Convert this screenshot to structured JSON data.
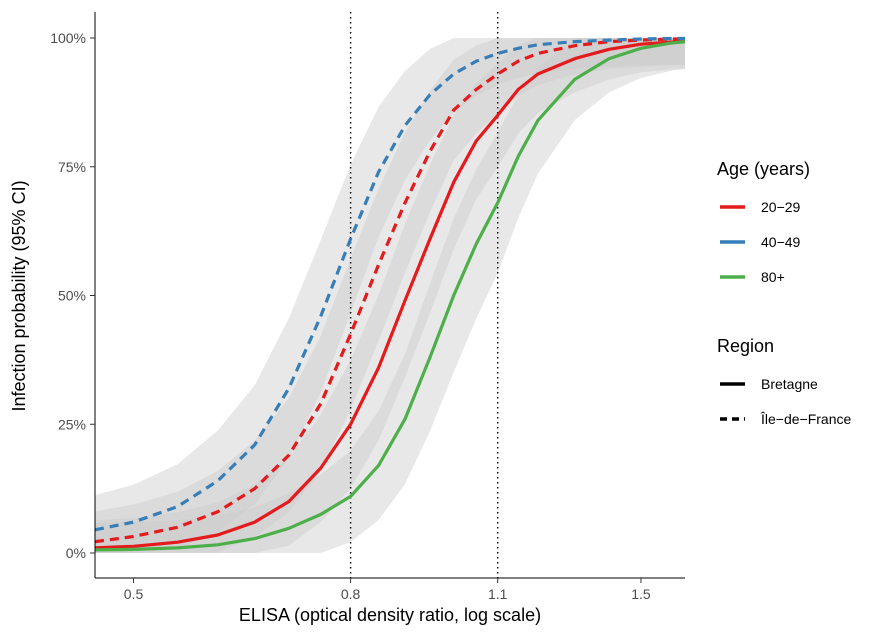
{
  "chart_data": {
    "type": "line",
    "xlabel": "ELISA (optical density ratio, log scale)",
    "ylabel": "Infection probability (95% CI)",
    "x_scale": "log",
    "xlim": [
      0.46,
      1.65
    ],
    "ylim": [
      0,
      1
    ],
    "x_ticks": [
      0.5,
      0.8,
      1.1,
      1.5
    ],
    "x_tick_labels": [
      "0.5",
      "0.8",
      "1.1",
      "1.5"
    ],
    "y_ticks": [
      0,
      0.25,
      0.5,
      0.75,
      1
    ],
    "y_tick_labels": [
      "0%",
      "25%",
      "50%",
      "75%",
      "100%"
    ],
    "reference_lines_x": [
      0.8,
      1.1
    ],
    "confidence_band": true,
    "grid": false,
    "legend_placement": "right",
    "legends": [
      {
        "title": "Age (years)",
        "items": [
          {
            "label": "20−29",
            "color": "#E41A1C"
          },
          {
            "label": "40−49",
            "color": "#377EB8"
          },
          {
            "label": "80+",
            "color": "#4DAF4A"
          }
        ]
      },
      {
        "title": "Region",
        "items": [
          {
            "label": "Bretagne",
            "linetype": "solid"
          },
          {
            "label": "Île−de−France",
            "linetype": "dashed"
          }
        ]
      }
    ],
    "series": [
      {
        "age": "20−29",
        "region": "Bretagne",
        "color": "#E41A1C",
        "dash": false,
        "x": [
          0.46,
          0.5,
          0.55,
          0.6,
          0.65,
          0.7,
          0.75,
          0.8,
          0.85,
          0.9,
          0.95,
          1.0,
          1.05,
          1.1,
          1.15,
          1.2,
          1.3,
          1.4,
          1.5,
          1.6,
          1.65
        ],
        "y": [
          0.01,
          0.013,
          0.021,
          0.035,
          0.06,
          0.1,
          0.165,
          0.25,
          0.36,
          0.49,
          0.61,
          0.72,
          0.8,
          0.85,
          0.9,
          0.93,
          0.96,
          0.978,
          0.988,
          0.992,
          0.993
        ]
      },
      {
        "age": "20−29",
        "region": "Île−de−France",
        "color": "#E41A1C",
        "dash": true,
        "x": [
          0.46,
          0.5,
          0.55,
          0.6,
          0.65,
          0.7,
          0.75,
          0.8,
          0.85,
          0.9,
          0.95,
          1.0,
          1.05,
          1.1,
          1.15,
          1.2,
          1.3,
          1.4,
          1.5,
          1.6,
          1.65
        ],
        "y": [
          0.022,
          0.032,
          0.05,
          0.08,
          0.125,
          0.19,
          0.29,
          0.425,
          0.56,
          0.68,
          0.78,
          0.86,
          0.9,
          0.93,
          0.955,
          0.97,
          0.985,
          0.993,
          0.996,
          0.998,
          0.998
        ]
      },
      {
        "age": "40−49",
        "region": "Île−de−France",
        "color": "#377EB8",
        "dash": true,
        "x": [
          0.46,
          0.5,
          0.55,
          0.6,
          0.65,
          0.7,
          0.75,
          0.8,
          0.85,
          0.9,
          0.95,
          1.0,
          1.05,
          1.1,
          1.15,
          1.2,
          1.3,
          1.4,
          1.5,
          1.6,
          1.65
        ],
        "y": [
          0.045,
          0.06,
          0.09,
          0.14,
          0.21,
          0.32,
          0.46,
          0.61,
          0.74,
          0.83,
          0.89,
          0.93,
          0.955,
          0.97,
          0.98,
          0.987,
          0.993,
          0.996,
          0.998,
          0.999,
          0.999
        ]
      },
      {
        "age": "80+",
        "region": "Bretagne",
        "color": "#4DAF4A",
        "dash": false,
        "x": [
          0.46,
          0.5,
          0.55,
          0.6,
          0.65,
          0.7,
          0.75,
          0.8,
          0.85,
          0.9,
          0.95,
          1.0,
          1.05,
          1.1,
          1.15,
          1.2,
          1.3,
          1.4,
          1.5,
          1.6,
          1.65
        ],
        "y": [
          0.006,
          0.007,
          0.01,
          0.016,
          0.028,
          0.048,
          0.075,
          0.11,
          0.17,
          0.26,
          0.38,
          0.5,
          0.6,
          0.68,
          0.77,
          0.84,
          0.92,
          0.96,
          0.98,
          0.99,
          0.993
        ]
      }
    ]
  }
}
